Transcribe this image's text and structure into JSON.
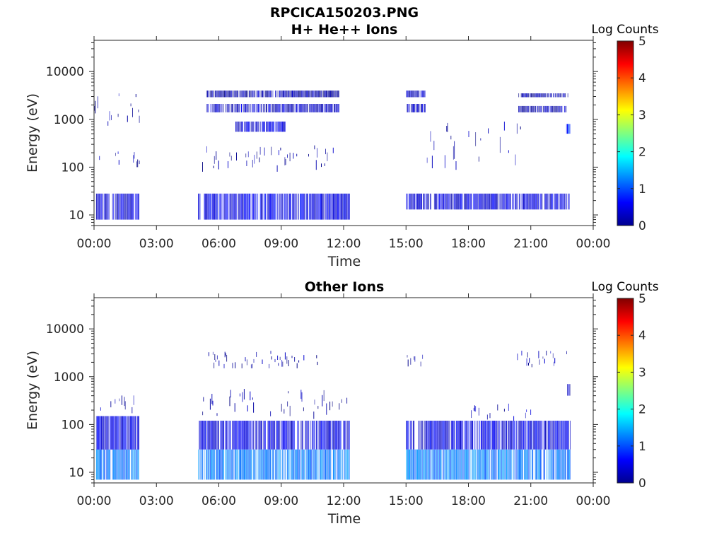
{
  "chart_data": [
    {
      "type": "heatmap",
      "figure_title": "RPCICA150203.PNG",
      "title": "H+ He++ Ions",
      "xlabel": "Time",
      "ylabel": "Energy (eV)",
      "x_tick_labels": [
        "00:00",
        "03:00",
        "06:00",
        "09:00",
        "12:00",
        "15:00",
        "18:00",
        "21:00",
        "00:00"
      ],
      "y_tick_labels": [
        "10",
        "100",
        "1000",
        "10000"
      ],
      "y_tick_values": [
        10,
        100,
        1000,
        10000
      ],
      "y_scale": "log",
      "ylim": [
        6,
        45000
      ],
      "xlim_hours": [
        0,
        24
      ],
      "colorbar": {
        "label": "Log Counts",
        "tick_labels": [
          "0",
          "1",
          "2",
          "3",
          "4",
          "5"
        ],
        "range": [
          0,
          5
        ],
        "colormap": "jet"
      },
      "blocks": [
        {
          "t0": 0.1,
          "t1": 2.15,
          "e0": 8,
          "e1": 28,
          "lc": 0.4
        },
        {
          "t0": 0.0,
          "t1": 2.2,
          "e0": 100,
          "e1": 300,
          "lc": 0.2,
          "sparse": true
        },
        {
          "t0": 0.0,
          "t1": 2.2,
          "e0": 600,
          "e1": 3500,
          "lc": 0.15,
          "sparse": true
        },
        {
          "t0": 5.0,
          "t1": 12.3,
          "e0": 8,
          "e1": 28,
          "lc": 0.5
        },
        {
          "t0": 5.4,
          "t1": 11.8,
          "e0": 1400,
          "e1": 2100,
          "lc": 0.35
        },
        {
          "t0": 5.4,
          "t1": 11.8,
          "e0": 2900,
          "e1": 4000,
          "lc": 0.2
        },
        {
          "t0": 6.8,
          "t1": 9.2,
          "e0": 550,
          "e1": 900,
          "lc": 0.45
        },
        {
          "t0": 5.2,
          "t1": 12.0,
          "e0": 80,
          "e1": 300,
          "lc": 0.2,
          "sparse": true
        },
        {
          "t0": 15.0,
          "t1": 22.9,
          "e0": 13,
          "e1": 28,
          "lc": 0.45
        },
        {
          "t0": 15.0,
          "t1": 15.9,
          "e0": 1400,
          "e1": 2100,
          "lc": 0.35
        },
        {
          "t0": 15.0,
          "t1": 15.9,
          "e0": 2900,
          "e1": 4000,
          "lc": 0.3
        },
        {
          "t0": 20.4,
          "t1": 22.8,
          "e0": 1400,
          "e1": 1900,
          "lc": 0.25
        },
        {
          "t0": 20.4,
          "t1": 22.8,
          "e0": 2900,
          "e1": 3500,
          "lc": 0.2
        },
        {
          "t0": 22.7,
          "t1": 22.9,
          "e0": 500,
          "e1": 800,
          "lc": 0.8
        },
        {
          "t0": 16.0,
          "t1": 20.5,
          "e0": 80,
          "e1": 1000,
          "lc": 0.15,
          "sparse": true
        }
      ]
    },
    {
      "type": "heatmap",
      "title": "Other Ions",
      "xlabel": "Time",
      "ylabel": "Energy (eV)",
      "x_tick_labels": [
        "00:00",
        "03:00",
        "06:00",
        "09:00",
        "12:00",
        "15:00",
        "18:00",
        "21:00",
        "00:00"
      ],
      "y_tick_labels": [
        "10",
        "100",
        "1000",
        "10000"
      ],
      "y_tick_values": [
        10,
        100,
        1000,
        10000
      ],
      "y_scale": "log",
      "ylim": [
        6,
        45000
      ],
      "xlim_hours": [
        0,
        24
      ],
      "colorbar": {
        "label": "Log Counts",
        "tick_labels": [
          "0",
          "1",
          "2",
          "3",
          "4",
          "5"
        ],
        "range": [
          0,
          5
        ],
        "colormap": "jet"
      },
      "blocks": [
        {
          "t0": 0.1,
          "t1": 2.15,
          "e0": 7,
          "e1": 30,
          "lc": 1.2
        },
        {
          "t0": 0.1,
          "t1": 2.15,
          "e0": 30,
          "e1": 150,
          "lc": 0.5
        },
        {
          "t0": 0.1,
          "t1": 2.15,
          "e0": 150,
          "e1": 500,
          "lc": 0.2,
          "sparse": true
        },
        {
          "t0": 5.0,
          "t1": 12.3,
          "e0": 7,
          "e1": 30,
          "lc": 1.2
        },
        {
          "t0": 5.0,
          "t1": 12.3,
          "e0": 30,
          "e1": 120,
          "lc": 0.5
        },
        {
          "t0": 5.0,
          "t1": 12.3,
          "e0": 120,
          "e1": 600,
          "lc": 0.15,
          "sparse": true
        },
        {
          "t0": 5.3,
          "t1": 11.0,
          "e0": 1500,
          "e1": 3500,
          "lc": 0.15,
          "sparse": true
        },
        {
          "t0": 15.0,
          "t1": 22.9,
          "e0": 7,
          "e1": 30,
          "lc": 1.2
        },
        {
          "t0": 15.0,
          "t1": 22.9,
          "e0": 30,
          "e1": 120,
          "lc": 0.5
        },
        {
          "t0": 18.0,
          "t1": 21.0,
          "e0": 120,
          "e1": 300,
          "lc": 0.25,
          "sparse": true
        },
        {
          "t0": 15.0,
          "t1": 15.9,
          "e0": 1500,
          "e1": 3500,
          "lc": 0.15,
          "sparse": true
        },
        {
          "t0": 20.3,
          "t1": 22.8,
          "e0": 1500,
          "e1": 3500,
          "lc": 0.15,
          "sparse": true
        },
        {
          "t0": 22.7,
          "t1": 22.9,
          "e0": 400,
          "e1": 700,
          "lc": 0.3
        }
      ]
    }
  ]
}
